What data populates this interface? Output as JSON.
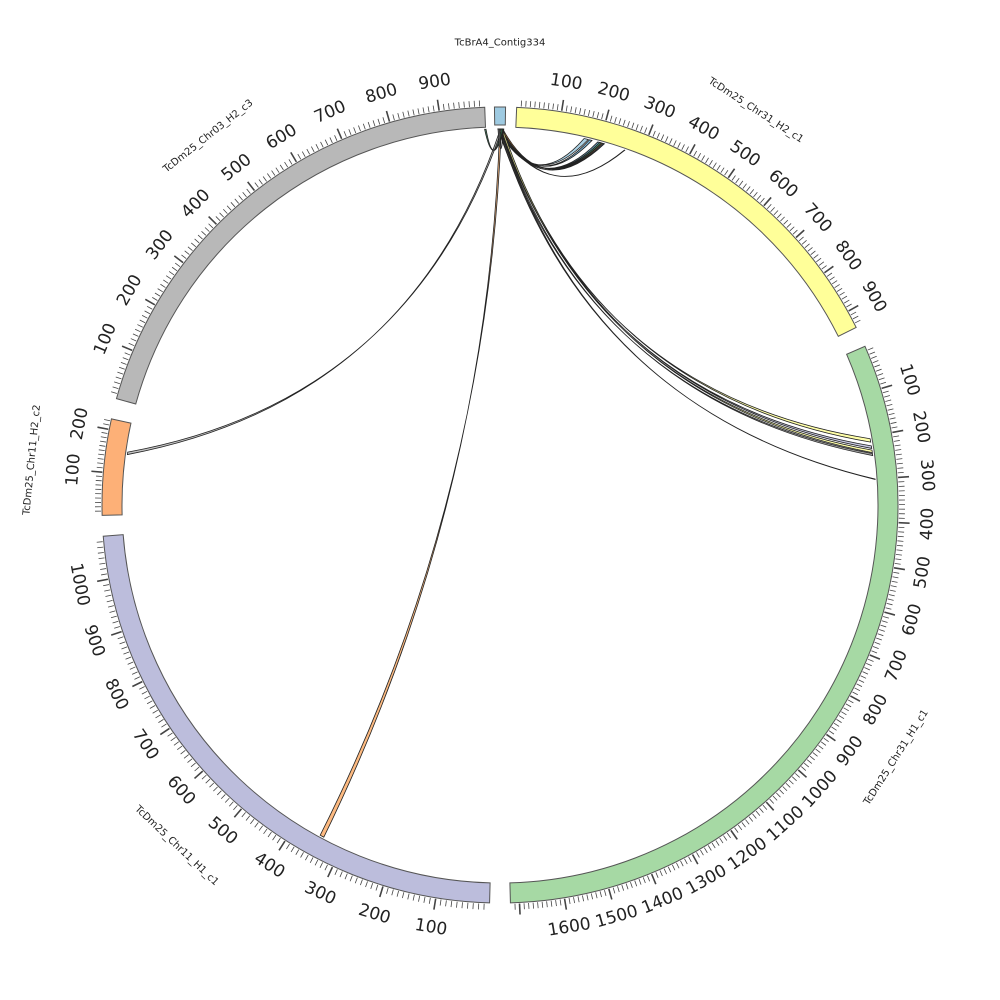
{
  "segments": [
    {
      "id": "contig",
      "label": "TcBrA4_Contig334",
      "start_deg": -0.8,
      "end_deg": 0.8,
      "color": "#9ecae1",
      "length": 10,
      "ticks": []
    },
    {
      "id": "chr31h2",
      "label": "TcDm25_Chr31_H2_c1",
      "start_deg": 2.4,
      "end_deg": 63.5,
      "color": "#ffff99",
      "length": 940,
      "ticks": [
        "100",
        "200",
        "300",
        "400",
        "500",
        "600",
        "700",
        "800",
        "900"
      ],
      "label_every": 100,
      "minor_every": 10
    },
    {
      "id": "chr31h1",
      "label": "TcDm25_Chr31_H1_c1",
      "start_deg": 66.5,
      "end_deg": 178.5,
      "color": "#a6d9a4",
      "length": 1720,
      "ticks": [
        "100",
        "200",
        "300",
        "400",
        "500",
        "600",
        "700",
        "800",
        "900",
        "1000",
        "1100",
        "1200",
        "1300",
        "1400",
        "1500",
        "1600"
      ],
      "label_every": 100,
      "minor_every": 10
    },
    {
      "id": "chr11h1",
      "label": "TcDm25_Chr11_H1_c1",
      "start_deg": 181.5,
      "end_deg": 265.5,
      "color": "#bcbddc",
      "length": 1080,
      "ticks": [
        "100",
        "200",
        "300",
        "400",
        "500",
        "600",
        "700",
        "800",
        "900",
        "1000"
      ],
      "label_every": 100,
      "minor_every": 10
    },
    {
      "id": "chr11h2",
      "label": "TcDm25_Chr11_H2_c2",
      "start_deg": 268.5,
      "end_deg": 282.5,
      "color": "#fdb077",
      "length": 225,
      "ticks": [
        "100",
        "200"
      ],
      "label_every": 100,
      "minor_every": 10
    },
    {
      "id": "chr03h2",
      "label": "TcDm25_Chr03_H2_c3",
      "start_deg": 285.5,
      "end_deg": 357.8,
      "color": "#b8b8b8",
      "length": 990,
      "ticks": [
        "100",
        "200",
        "300",
        "400",
        "500",
        "600",
        "700",
        "800",
        "900"
      ],
      "label_every": 100,
      "minor_every": 10
    }
  ],
  "links": [
    {
      "target": "chr31h2",
      "pos": 162,
      "width": 10,
      "color": "#9ecae1"
    },
    {
      "target": "chr31h2",
      "pos": 175,
      "width": 6,
      "color": "#6aaed6"
    },
    {
      "target": "chr31h2",
      "pos": 195,
      "width": 5,
      "color": "#4f8fb0"
    },
    {
      "target": "chr31h2",
      "pos": 200,
      "width": 4,
      "color": "#2f9e6a"
    },
    {
      "target": "chr31h2",
      "pos": 205,
      "width": 4,
      "color": "#d9822b"
    },
    {
      "target": "chr31h2",
      "pos": 208,
      "width": 3,
      "color": "#3a6fa8"
    },
    {
      "target": "chr31h2",
      "pos": 260,
      "width": 1,
      "color": "#444444"
    },
    {
      "target": "chr31h1",
      "pos": 205,
      "width": 8,
      "color": "#ffff99"
    },
    {
      "target": "chr31h1",
      "pos": 222,
      "width": 6,
      "color": "#bcbddc"
    },
    {
      "target": "chr31h1",
      "pos": 232,
      "width": 6,
      "color": "#ffff99"
    },
    {
      "target": "chr31h1",
      "pos": 240,
      "width": 5,
      "color": "#8c8c8c"
    },
    {
      "target": "chr31h1",
      "pos": 300,
      "width": 1,
      "color": "#333333"
    },
    {
      "target": "chr11h1",
      "pos": 340,
      "width": 8,
      "color": "#fdae6b"
    },
    {
      "target": "chr11h2",
      "pos": 148,
      "width": 6,
      "color": "#b8b8b8"
    },
    {
      "target": "chr03h2",
      "pos": 988,
      "width": 3,
      "color": "#2e7d55"
    },
    {
      "target": "self",
      "pos": 0,
      "width": 2,
      "color": "#888888"
    }
  ]
}
